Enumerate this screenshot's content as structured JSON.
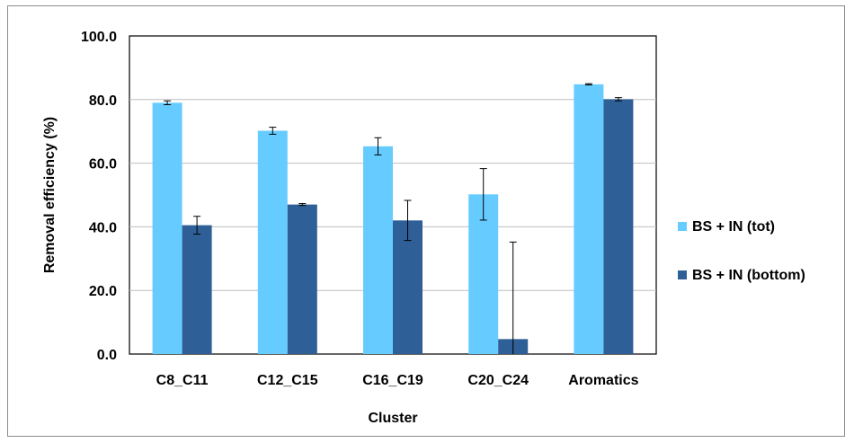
{
  "chart_data": {
    "type": "bar",
    "categories": [
      "C8_C11",
      "C12_C15",
      "C16_C19",
      "C20_C24",
      "Aromatics"
    ],
    "series": [
      {
        "name": "BS + IN (tot)",
        "values": [
          79.0,
          70.2,
          65.3,
          50.2,
          84.8
        ],
        "errors": [
          0.6,
          1.1,
          2.7,
          8.1,
          0.2
        ],
        "color": "#66ccff"
      },
      {
        "name": "BS + IN (bottom)",
        "values": [
          40.5,
          47.0,
          42.0,
          4.7,
          80.1
        ],
        "errors": [
          2.8,
          0.3,
          6.3,
          30.5,
          0.5
        ],
        "color": "#2e5f96"
      }
    ],
    "xlabel": "Cluster",
    "ylabel": "Removal efficiency (%)",
    "ylim": [
      0,
      100
    ],
    "yticks": [
      "0.0",
      "20.0",
      "40.0",
      "60.0",
      "80.0",
      "100.0"
    ],
    "grid": true,
    "legend_position": "right"
  }
}
